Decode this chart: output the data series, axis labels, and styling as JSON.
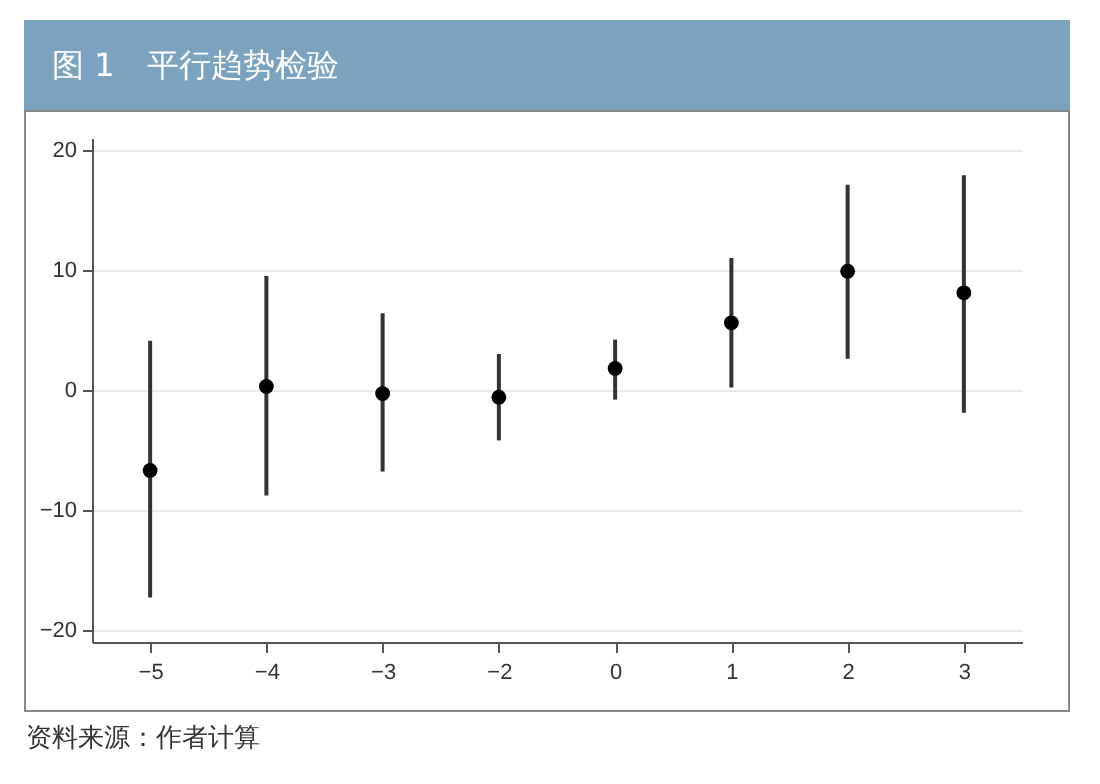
{
  "chart_data": {
    "type": "scatter",
    "title": "图 1　平行趋势检验",
    "categories": [
      "−5",
      "−4",
      "−3",
      "−2",
      "0",
      "1",
      "2",
      "3"
    ],
    "values": [
      -6.7,
      0.3,
      -0.3,
      -0.6,
      1.8,
      5.6,
      9.9,
      8.1
    ],
    "errors": [
      [
        -17.3,
        4.1
      ],
      [
        -8.8,
        9.5
      ],
      [
        -6.8,
        6.4
      ],
      [
        -4.2,
        3.0
      ],
      [
        -0.8,
        4.2
      ],
      [
        0.2,
        11.0
      ],
      [
        2.6,
        17.1
      ],
      [
        -1.9,
        17.9
      ]
    ],
    "color": "#000000",
    "marker": "circle",
    "grid": "y",
    "ylim": [
      -21,
      21
    ],
    "yticks": [
      -20,
      -10,
      0,
      10,
      20
    ],
    "annotations": [
      "资料来源：作者计算"
    ]
  }
}
